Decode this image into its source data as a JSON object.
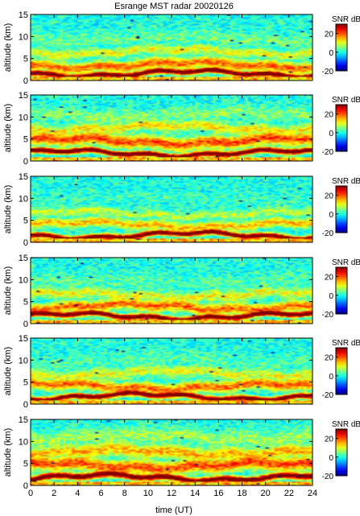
{
  "title": "Esrange MST radar 20020126",
  "chart_data": {
    "type": "heatmap",
    "title": "Esrange MST radar 20020126",
    "xlabel": "time (UT)",
    "ylabel": "altitude (km)",
    "xlim": [
      0,
      24
    ],
    "ylim": [
      0,
      15
    ],
    "xticks": [
      0,
      2,
      4,
      6,
      8,
      10,
      12,
      14,
      16,
      18,
      20,
      22,
      24
    ],
    "yticks": [
      0,
      5,
      10,
      15
    ],
    "colorbar": {
      "label": "SNR dB",
      "range": [
        -20,
        30
      ],
      "ticks": [
        -20,
        0,
        20
      ],
      "colormap": "jet"
    },
    "panels": [
      {
        "name": "panel-1",
        "seed": 11,
        "description_layers": [
          {
            "alt": 1.6,
            "width": 0.6,
            "snr": 28
          },
          {
            "alt": 3.5,
            "width": 1.2,
            "snr": 14
          },
          {
            "alt": 6.5,
            "width": 1.0,
            "snr": 8
          },
          {
            "alt": 9.5,
            "width": 1.5,
            "snr": 3
          }
        ]
      },
      {
        "name": "panel-2",
        "seed": 23,
        "description_layers": [
          {
            "alt": 1.8,
            "width": 0.6,
            "snr": 28
          },
          {
            "alt": 4.5,
            "width": 1.4,
            "snr": 15
          },
          {
            "alt": 7.5,
            "width": 1.2,
            "snr": 9
          },
          {
            "alt": 10.5,
            "width": 1.5,
            "snr": 4
          }
        ]
      },
      {
        "name": "panel-3",
        "seed": 37,
        "description_layers": [
          {
            "alt": 1.6,
            "width": 0.6,
            "snr": 26
          },
          {
            "alt": 4.0,
            "width": 1.0,
            "snr": 11
          },
          {
            "alt": 6.5,
            "width": 1.0,
            "snr": 6
          },
          {
            "alt": 10.0,
            "width": 1.5,
            "snr": 1
          }
        ]
      },
      {
        "name": "panel-4",
        "seed": 53,
        "description_layers": [
          {
            "alt": 1.7,
            "width": 0.6,
            "snr": 27
          },
          {
            "alt": 3.8,
            "width": 1.2,
            "snr": 14
          },
          {
            "alt": 6.5,
            "width": 1.2,
            "snr": 8
          },
          {
            "alt": 9.5,
            "width": 1.5,
            "snr": 2
          }
        ]
      },
      {
        "name": "panel-5",
        "seed": 71,
        "description_layers": [
          {
            "alt": 1.7,
            "width": 0.6,
            "snr": 27
          },
          {
            "alt": 4.0,
            "width": 1.2,
            "snr": 14
          },
          {
            "alt": 7.0,
            "width": 1.2,
            "snr": 8
          },
          {
            "alt": 10.0,
            "width": 1.5,
            "snr": 2
          }
        ]
      },
      {
        "name": "panel-6",
        "seed": 89,
        "description_layers": [
          {
            "alt": 1.8,
            "width": 0.7,
            "snr": 27
          },
          {
            "alt": 4.5,
            "width": 1.5,
            "snr": 15
          },
          {
            "alt": 7.5,
            "width": 1.5,
            "snr": 11
          },
          {
            "alt": 11.0,
            "width": 1.8,
            "snr": 5
          }
        ]
      }
    ]
  }
}
